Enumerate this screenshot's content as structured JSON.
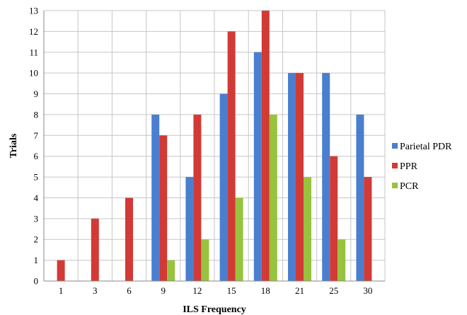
{
  "chart_data": {
    "type": "bar",
    "title": "",
    "xlabel": "ILS Frequency",
    "ylabel": "Trials",
    "categories": [
      "1",
      "3",
      "6",
      "9",
      "12",
      "15",
      "18",
      "21",
      "25",
      "30"
    ],
    "series": [
      {
        "name": "Parietal PDR",
        "color": "#4a7fcf",
        "values": [
          0,
          0,
          0,
          8,
          5,
          9,
          11,
          10,
          10,
          8
        ]
      },
      {
        "name": "PPR",
        "color": "#d23a36",
        "values": [
          1,
          3,
          4,
          7,
          8,
          12,
          13,
          10,
          6,
          5
        ]
      },
      {
        "name": "PCR",
        "color": "#98c33e",
        "values": [
          0,
          0,
          0,
          1,
          2,
          4,
          8,
          5,
          2,
          0
        ]
      }
    ],
    "ylim": [
      0,
      13
    ],
    "yticks": [
      0,
      1,
      2,
      3,
      4,
      5,
      6,
      7,
      8,
      9,
      10,
      11,
      12,
      13
    ],
    "grid": true,
    "legend_position": "right"
  }
}
